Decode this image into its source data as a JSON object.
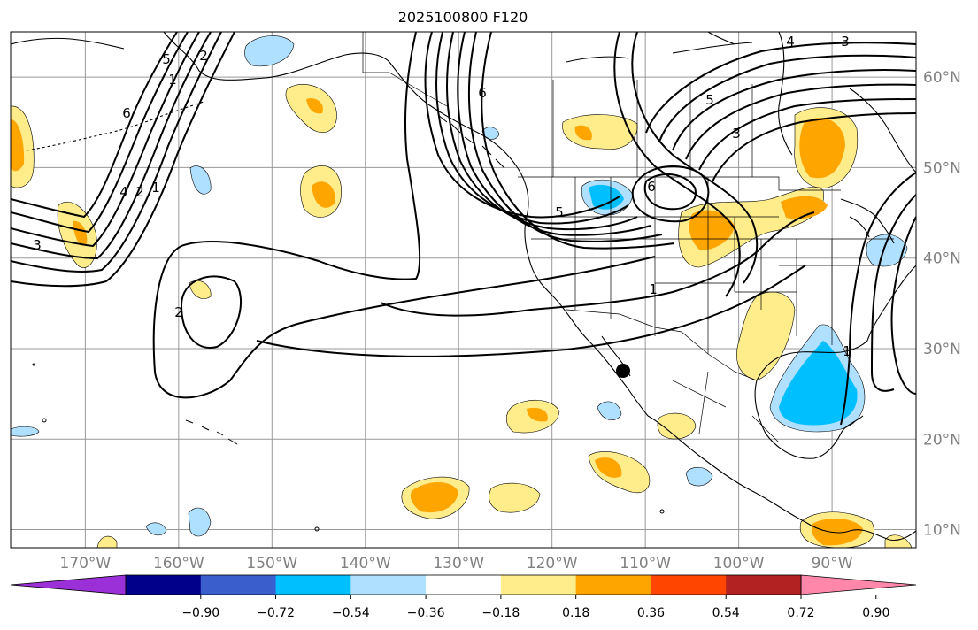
{
  "title": "2025100800 F120",
  "map": {
    "lon_range": [
      -178,
      -81
    ],
    "lat_range": [
      8,
      65
    ],
    "lon_labels": [
      "170°W",
      "160°W",
      "150°W",
      "140°W",
      "130°W",
      "120°W",
      "110°W",
      "100°W",
      "90°W"
    ],
    "lon_values": [
      -170,
      -160,
      -150,
      -140,
      -130,
      -120,
      -110,
      -100,
      -90
    ],
    "lat_labels": [
      "60°N",
      "50°N",
      "40°N",
      "30°N",
      "20°N",
      "10°N"
    ],
    "lat_values": [
      60,
      50,
      40,
      30,
      20,
      10
    ],
    "contour_labels": [
      "3",
      "4",
      "2",
      "1",
      "6",
      "5",
      "2",
      "1",
      "2",
      "6",
      "5",
      "1",
      "6",
      "5",
      "3",
      "4",
      "3",
      "1"
    ],
    "marker": "black-dot"
  },
  "colorbar": {
    "ticks": [
      "−0.90",
      "−0.72",
      "−0.54",
      "−0.36",
      "−0.18",
      "0.18",
      "0.36",
      "0.54",
      "0.72",
      "0.90"
    ],
    "colors": [
      "#9b30d9",
      "#00008b",
      "#3a5fcd",
      "#00bfff",
      "#b0e0ff",
      "#ffffff",
      "#ffec8b",
      "#ffa500",
      "#ff4500",
      "#b22222",
      "#ff88aa"
    ]
  }
}
